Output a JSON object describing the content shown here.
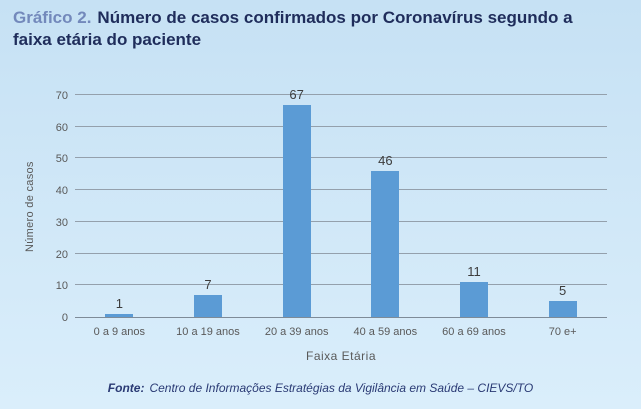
{
  "header": {
    "title_prefix": "Gráfico 2.",
    "title_text": "Número de casos confirmados por Coronavírus segundo a faixa etária do paciente"
  },
  "chart_data": {
    "type": "bar",
    "categories": [
      "0 a 9 anos",
      "10 a 19 anos",
      "20 a 39 anos",
      "40 a 59 anos",
      "60 a 69 anos",
      "70 e+"
    ],
    "values": [
      1,
      7,
      67,
      46,
      11,
      5
    ],
    "title": "Número de casos confirmados por Coronavírus segundo a faixa etária do paciente",
    "xlabel": "Faixa Etária",
    "ylabel": "Número de casos",
    "ylim": [
      0,
      70
    ],
    "yticks": [
      0,
      10,
      20,
      30,
      40,
      50,
      60,
      70
    ],
    "grid": true,
    "legend": "none",
    "bar_color": "#5b9bd5"
  },
  "footer": {
    "label": "Fonte:",
    "text": "Centro de Informações Estratégias da Vigilância em Saúde – CIEVS/TO"
  },
  "colors": {
    "bg-top": "#c6e1f4",
    "bg-bottom": "#daeefb",
    "title-accent": "#7389bb",
    "title-main": "#1f2d5b",
    "bar": "#5b9bd5",
    "grid": "#94a0ac",
    "axis": "#7e8b98",
    "tick-text": "#595959",
    "value-text": "#3c3c3c",
    "footer-text": "#2a3a74"
  }
}
